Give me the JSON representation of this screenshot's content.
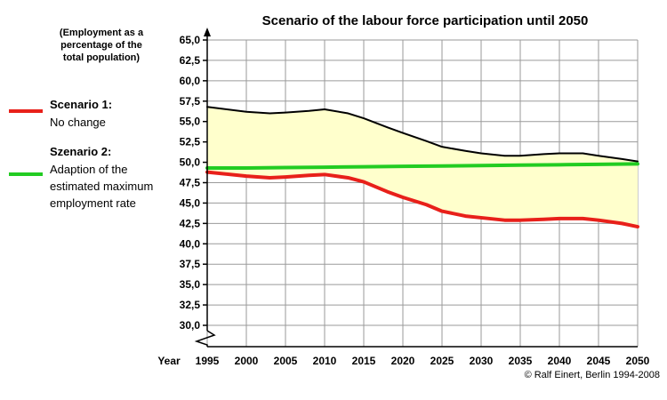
{
  "chart_data": {
    "type": "line",
    "title": "Scenario of the labour force participation until 2050",
    "unit_note": [
      "(Employment as a",
      "percentage of the",
      "total population)"
    ],
    "xlabel": "Year",
    "x_ticks": [
      1995,
      2000,
      2005,
      2010,
      2015,
      2020,
      2025,
      2030,
      2035,
      2040,
      2045,
      2050
    ],
    "y_ticks": [
      "30,0",
      "32,5",
      "35,0",
      "37,5",
      "40,0",
      "42,5",
      "45,0",
      "47,5",
      "50,0",
      "52,5",
      "55,0",
      "57,5",
      "60,0",
      "62,5",
      "65,0"
    ],
    "xlim": [
      1995,
      2050
    ],
    "ylim": [
      30,
      65
    ],
    "grid": true,
    "legend_position": "left",
    "series": [
      {
        "name": "Scenario 1:",
        "description": [
          "No change"
        ],
        "color": "#e8201a",
        "x": [
          1995,
          2000,
          2003,
          2005,
          2008,
          2010,
          2013,
          2015,
          2018,
          2020,
          2023,
          2025,
          2028,
          2030,
          2033,
          2035,
          2038,
          2040,
          2043,
          2045,
          2048,
          2050
        ],
        "y": [
          48.8,
          48.3,
          48.1,
          48.2,
          48.4,
          48.5,
          48.1,
          47.6,
          46.4,
          45.7,
          44.8,
          44.0,
          43.4,
          43.2,
          42.9,
          42.9,
          43.0,
          43.1,
          43.1,
          42.9,
          42.5,
          42.1
        ]
      },
      {
        "name": "Szenario 2:",
        "description": [
          "Adaption of the",
          "estimated maximum",
          "employment rate"
        ],
        "color": "#22cc22",
        "x": [
          1995,
          2000,
          2005,
          2010,
          2015,
          2020,
          2025,
          2030,
          2035,
          2040,
          2045,
          2050
        ],
        "y": [
          49.3,
          49.3,
          49.35,
          49.4,
          49.45,
          49.5,
          49.55,
          49.6,
          49.65,
          49.7,
          49.75,
          49.8
        ]
      },
      {
        "x": [
          1995,
          2000,
          2003,
          2005,
          2008,
          2010,
          2013,
          2015,
          2018,
          2020,
          2023,
          2025,
          2028,
          2030,
          2033,
          2035,
          2038,
          2040,
          2043,
          2045,
          2048,
          2050
        ],
        "y": [
          56.8,
          56.2,
          56.0,
          56.1,
          56.3,
          56.5,
          56.0,
          55.4,
          54.3,
          53.6,
          52.6,
          51.9,
          51.4,
          51.1,
          50.8,
          50.8,
          51.0,
          51.1,
          51.1,
          50.8,
          50.4,
          50.1
        ],
        "color": "#000000"
      }
    ],
    "band_fill": "#ffffcc"
  },
  "copyright": "© Ralf Einert, Berlin 1994-2008"
}
